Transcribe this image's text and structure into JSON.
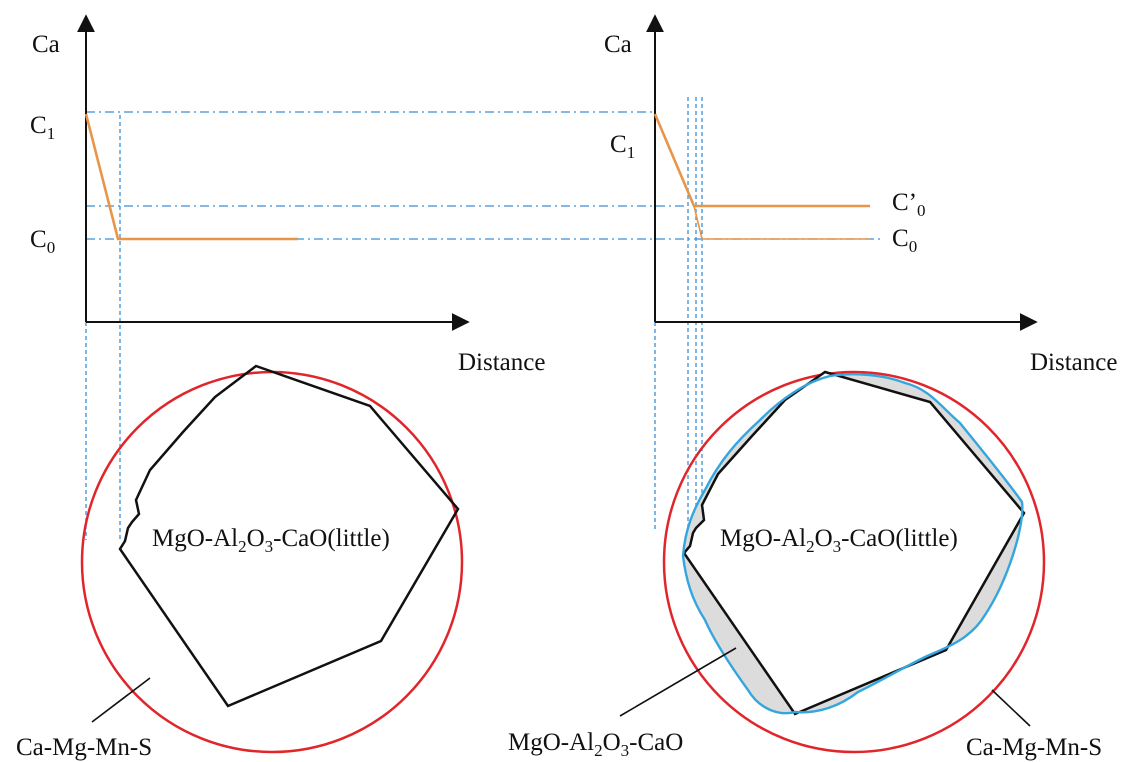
{
  "colors": {
    "axis": "#111111",
    "profile": "#e8954a",
    "guide": "#3b8fd6",
    "circle": "#e0262b",
    "interface": "#34a6dd",
    "fill": "#dcdcdc",
    "inclusion": "#111111"
  },
  "left_panel": {
    "y_axis_label": "Ca",
    "x_axis_label": "Distance",
    "level_high": {
      "base": "C",
      "sub": "1"
    },
    "level_low": {
      "base": "C",
      "sub": "0"
    },
    "core_label": {
      "p1": "MgO-Al",
      "s1": "2",
      "p2": "O",
      "s2": "3",
      "p3": "-CaO(little)"
    },
    "matrix_label": "Ca-Mg-Mn-S"
  },
  "right_panel": {
    "y_axis_label": "Ca",
    "x_axis_label": "Distance",
    "level_high": {
      "base": "C",
      "sub": "1"
    },
    "level_mid": {
      "base": "C’",
      "sub": "0"
    },
    "level_low": {
      "base": "C",
      "sub": "0"
    },
    "core_label": {
      "p1": "MgO-Al",
      "s1": "2",
      "p2": "O",
      "s2": "3",
      "p3": "-CaO(little)"
    },
    "layer_label": {
      "p1": "MgO-Al",
      "s1": "2",
      "p2": "O",
      "s2": "3",
      "p3": "-CaO"
    },
    "matrix_label": "Ca-Mg-Mn-S"
  }
}
